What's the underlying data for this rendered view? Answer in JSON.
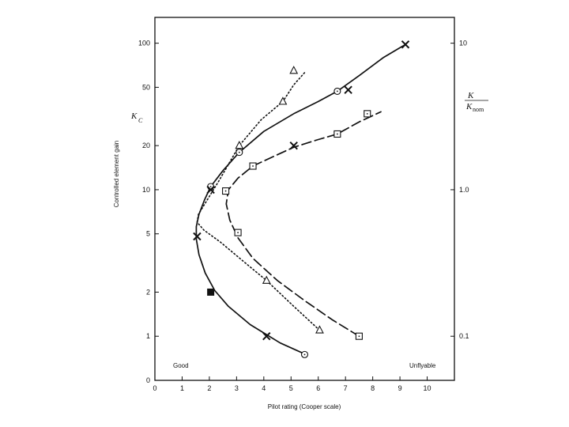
{
  "chart_data": {
    "type": "line",
    "xlabel": "Pilot rating (Cooper scale)",
    "ylabel": "Controlled element gain",
    "y_symbol": "K",
    "y_symbol_sub": "C",
    "y2_symbol_num": "K",
    "y2_symbol_den_main": "K",
    "y2_symbol_den_sub": "nom",
    "xlim": [
      0,
      11
    ],
    "ylim": [
      0.5,
      150
    ],
    "yscale": "log",
    "x_ticks": [
      "0",
      "1",
      "2",
      "3",
      "4",
      "5",
      "6",
      "7",
      "8",
      "9",
      "10"
    ],
    "y_ticks": [
      {
        "value": 100,
        "label": "100"
      },
      {
        "value": 50,
        "label": "50"
      },
      {
        "value": 20,
        "label": "20"
      },
      {
        "value": 10,
        "label": "10"
      },
      {
        "value": 5,
        "label": "5"
      },
      {
        "value": 2,
        "label": "2"
      },
      {
        "value": 1,
        "label": "1"
      },
      {
        "value": 0.5,
        "label": "0"
      }
    ],
    "y2_ticks": [
      {
        "value": 100,
        "label": "10"
      },
      {
        "value": 10,
        "label": "1.0"
      },
      {
        "value": 1,
        "label": "0.1"
      }
    ],
    "annotations": {
      "left": "Good",
      "right": "Unflyable"
    },
    "series": [
      {
        "style": "solid",
        "marker": "circle",
        "points": [
          [
            5.5,
            0.75
          ],
          [
            2.05,
            10.5
          ],
          [
            3.1,
            18
          ],
          [
            6.7,
            47
          ]
        ],
        "curve": [
          [
            5.55,
            0.75
          ],
          [
            4.6,
            0.9
          ],
          [
            3.5,
            1.2
          ],
          [
            2.7,
            1.6
          ],
          [
            2.2,
            2.05
          ],
          [
            1.85,
            2.7
          ],
          [
            1.62,
            3.6
          ],
          [
            1.52,
            4.6
          ],
          [
            1.52,
            5.6
          ],
          [
            1.62,
            6.8
          ],
          [
            1.82,
            8.5
          ],
          [
            2.05,
            10.5
          ],
          [
            2.5,
            13.5
          ],
          [
            3.1,
            18
          ],
          [
            4,
            25
          ],
          [
            5.1,
            33
          ],
          [
            6,
            40
          ],
          [
            6.7,
            47
          ],
          [
            7.5,
            60
          ],
          [
            8.4,
            80
          ],
          [
            9.2,
            98
          ]
        ]
      },
      {
        "style": "dotted",
        "marker": "triangle",
        "points": [
          [
            6.05,
            1.1
          ],
          [
            4.1,
            2.4
          ],
          [
            3.1,
            20
          ],
          [
            4.7,
            40
          ],
          [
            5.1,
            65
          ]
        ],
        "curve": [
          [
            6.05,
            1.1
          ],
          [
            5.1,
            1.6
          ],
          [
            4.1,
            2.4
          ],
          [
            3.2,
            3.3
          ],
          [
            2.4,
            4.4
          ],
          [
            1.8,
            5.3
          ],
          [
            1.55,
            6
          ],
          [
            1.6,
            6.8
          ],
          [
            1.9,
            8.4
          ],
          [
            2.35,
            11.5
          ],
          [
            3.1,
            20
          ],
          [
            3.9,
            30
          ],
          [
            4.7,
            40
          ],
          [
            5.1,
            52
          ],
          [
            5.5,
            63
          ]
        ]
      },
      {
        "style": "dashed",
        "marker": "square",
        "points": [
          [
            7.5,
            1
          ],
          [
            3.05,
            5.1
          ],
          [
            2.6,
            9.8
          ],
          [
            3.6,
            14.5
          ],
          [
            6.7,
            24
          ],
          [
            7.8,
            33
          ]
        ],
        "curve": [
          [
            7.5,
            1
          ],
          [
            6.5,
            1.3
          ],
          [
            5.5,
            1.75
          ],
          [
            4.5,
            2.4
          ],
          [
            3.6,
            3.4
          ],
          [
            3.05,
            4.7
          ],
          [
            2.75,
            6.2
          ],
          [
            2.62,
            8
          ],
          [
            2.7,
            10
          ],
          [
            3.05,
            12
          ],
          [
            3.6,
            14.5
          ],
          [
            4.4,
            17
          ],
          [
            5.1,
            19.5
          ],
          [
            6,
            22
          ],
          [
            6.7,
            24
          ],
          [
            7.5,
            29
          ],
          [
            8.3,
            34
          ]
        ]
      }
    ],
    "x_markers": [
      [
        9.2,
        98
      ],
      [
        7.1,
        48
      ],
      [
        5.1,
        20
      ],
      [
        2.05,
        10
      ],
      [
        1.55,
        4.8
      ],
      [
        4.1,
        1
      ]
    ],
    "filled_square": [
      [
        2.05,
        2
      ]
    ]
  }
}
